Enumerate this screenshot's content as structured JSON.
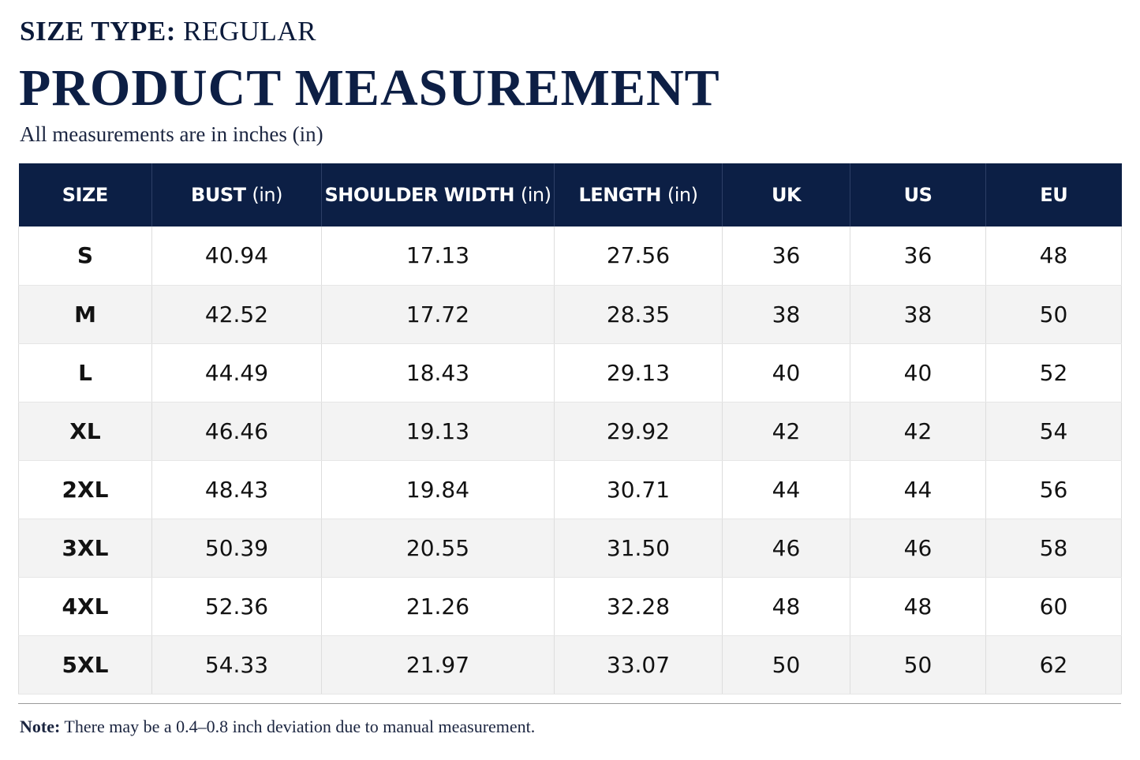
{
  "header": {
    "size_type_label": "SIZE TYPE:",
    "size_type_value": "REGULAR",
    "title": "PRODUCT MEASUREMENT",
    "subtitle": "All measurements are in inches (in)"
  },
  "table": {
    "columns": [
      {
        "label": "SIZE",
        "unit": ""
      },
      {
        "label": "BUST",
        "unit": "(in)"
      },
      {
        "label": "SHOULDER WIDTH",
        "unit": "(in)"
      },
      {
        "label": "LENGTH",
        "unit": "(in)"
      },
      {
        "label": "UK",
        "unit": ""
      },
      {
        "label": "US",
        "unit": ""
      },
      {
        "label": "EU",
        "unit": ""
      }
    ],
    "rows": [
      [
        "S",
        "40.94",
        "17.13",
        "27.56",
        "36",
        "36",
        "48"
      ],
      [
        "M",
        "42.52",
        "17.72",
        "28.35",
        "38",
        "38",
        "50"
      ],
      [
        "L",
        "44.49",
        "18.43",
        "29.13",
        "40",
        "40",
        "52"
      ],
      [
        "XL",
        "46.46",
        "19.13",
        "29.92",
        "42",
        "42",
        "54"
      ],
      [
        "2XL",
        "48.43",
        "19.84",
        "30.71",
        "44",
        "44",
        "56"
      ],
      [
        "3XL",
        "50.39",
        "20.55",
        "31.50",
        "46",
        "46",
        "58"
      ],
      [
        "4XL",
        "52.36",
        "21.26",
        "32.28",
        "48",
        "48",
        "60"
      ],
      [
        "5XL",
        "54.33",
        "21.97",
        "33.07",
        "50",
        "50",
        "62"
      ]
    ]
  },
  "footer": {
    "note_label": "Note:",
    "note_text": "There may be a 0.4–0.8 inch deviation due to manual measurement."
  },
  "colors": {
    "header_bg": "#0c1f45",
    "title": "#0d1f45",
    "row_alt": "#f3f3f3"
  }
}
